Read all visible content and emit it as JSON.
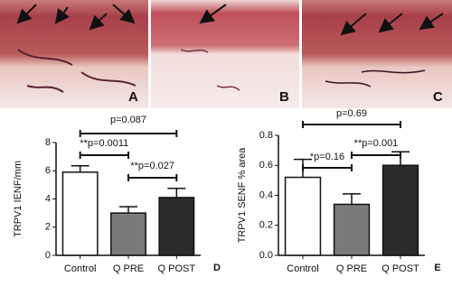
{
  "panels": {
    "labels": [
      "A",
      "B",
      "C"
    ]
  },
  "chart_data": [
    {
      "type": "bar",
      "y_label": "TRPV1 IENF/mm",
      "panel": "D",
      "categories": [
        "Control",
        "Q PRE",
        "Q POST"
      ],
      "values": [
        5.9,
        3.0,
        4.1
      ],
      "errors": [
        0.45,
        0.45,
        0.65
      ],
      "colors": [
        "#ffffff",
        "#7a7a7a",
        "#2b2b2b"
      ],
      "ylim": [
        0,
        8
      ],
      "yticks": [
        0,
        2,
        4,
        6,
        8
      ],
      "annotations": [
        "p=0.087",
        "**p=0.0011",
        "**p=0.027"
      ]
    },
    {
      "type": "bar",
      "y_label": "TRPV1 SENF % area",
      "panel": "E",
      "categories": [
        "Control",
        "Q PRE",
        "Q POST"
      ],
      "values": [
        0.52,
        0.34,
        0.6
      ],
      "errors": [
        0.12,
        0.07,
        0.09
      ],
      "colors": [
        "#ffffff",
        "#7a7a7a",
        "#2b2b2b"
      ],
      "ylim": [
        0,
        0.8
      ],
      "yticks": [
        {
          "value": 0,
          "label": "0.0"
        },
        {
          "value": 0.2,
          "label": "0.2"
        },
        {
          "value": 0.4,
          "label": "0.4"
        },
        {
          "value": 0.6,
          "label": "0.6"
        },
        {
          "value": 0.8,
          "label": "0.8"
        }
      ],
      "annotations": [
        "p=0.69",
        "**p=0.001",
        "*p=0.16"
      ]
    }
  ]
}
